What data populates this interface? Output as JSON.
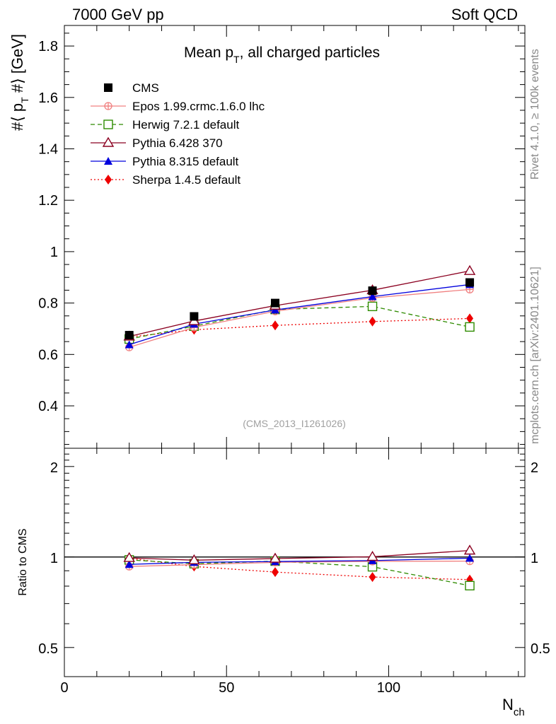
{
  "header": {
    "left": "7000 GeV pp",
    "right": "Soft QCD"
  },
  "side_labels": {
    "rivet": "Rivet 4.1.0, ≥ 100k events",
    "mcplots": "mcplots.cern.ch [arXiv:2401.10621]"
  },
  "colors": {
    "CMS": "#000000",
    "Epos": "#f08080",
    "Herwig": "#2e8b00",
    "Pythia6": "#8b0020",
    "Pythia8": "#0000dd",
    "Sherpa": "#ee0000"
  },
  "chart_data": [
    {
      "type": "line",
      "panel": "main",
      "title_main": "Mean p",
      "title_sub": "T",
      "title_rest": ", all charged particles",
      "ylabel": "#⟨ p_T #⟩ [GeV]",
      "ylabel_pre": "#⟨ p",
      "ylabel_sub": "T",
      "ylabel_post": " #⟩ [GeV]",
      "xlabel": "N_ch",
      "xlim": [
        0,
        142
      ],
      "ylim": [
        0.235,
        1.88
      ],
      "yticks": [
        0.4,
        0.6,
        0.8,
        1.0,
        1.2,
        1.4,
        1.6,
        1.8
      ],
      "ytick_labels": [
        "0.4",
        "0.6",
        "0.8",
        "1",
        "1.2",
        "1.4",
        "1.6",
        "1.8"
      ],
      "watermark": "(CMS_2013_I1261026)",
      "x": [
        20,
        40,
        65,
        95,
        125
      ],
      "series": [
        {
          "key": "CMS",
          "name": "CMS",
          "marker": "square-filled",
          "dash": "none",
          "values": [
            0.675,
            0.748,
            0.8,
            0.848,
            0.88
          ]
        },
        {
          "key": "Epos",
          "name": "Epos 1.99.crmc.1.6.0 lhc",
          "marker": "plus-circle",
          "dash": "solid",
          "values": [
            0.628,
            0.705,
            0.768,
            0.82,
            0.853
          ]
        },
        {
          "key": "Herwig",
          "name": "Herwig 7.2.1 default",
          "marker": "square-open",
          "dash": "dashed",
          "values": [
            0.66,
            0.71,
            0.775,
            0.787,
            0.707
          ]
        },
        {
          "key": "Pythia6",
          "name": "Pythia 6.428 370",
          "marker": "triangle-open",
          "dash": "solid",
          "values": [
            0.67,
            0.73,
            0.79,
            0.85,
            0.925
          ]
        },
        {
          "key": "Pythia8",
          "name": "Pythia 8.315 default",
          "marker": "triangle-filled",
          "dash": "solid",
          "values": [
            0.638,
            0.718,
            0.773,
            0.825,
            0.872
          ]
        },
        {
          "key": "Sherpa",
          "name": "Sherpa 1.4.5 default",
          "marker": "diamond-filled",
          "dash": "dotted",
          "values": [
            0.668,
            0.696,
            0.713,
            0.728,
            0.74
          ]
        }
      ]
    },
    {
      "type": "line",
      "panel": "ratio",
      "ylabel": "Ratio to CMS",
      "xlabel_main": "N",
      "xlabel_sub": "ch",
      "xlim": [
        0,
        142
      ],
      "ylim_log": [
        0.4,
        2.3
      ],
      "yticks": [
        0.5,
        1,
        2
      ],
      "ytick_labels": [
        "0.5",
        "1",
        "2"
      ],
      "xticks": [
        0,
        50,
        100
      ],
      "xtick_labels": [
        "0",
        "50",
        "100"
      ],
      "x": [
        20,
        40,
        65,
        95,
        125
      ],
      "series": [
        {
          "key": "Epos",
          "marker": "plus-circle",
          "dash": "solid",
          "values": [
            0.93,
            0.943,
            0.96,
            0.967,
            0.969
          ]
        },
        {
          "key": "Herwig",
          "marker": "square-open",
          "dash": "dashed",
          "values": [
            0.978,
            0.95,
            0.969,
            0.928,
            0.803
          ]
        },
        {
          "key": "Pythia6",
          "marker": "triangle-open",
          "dash": "solid",
          "values": [
            0.993,
            0.976,
            0.988,
            1.002,
            1.051
          ]
        },
        {
          "key": "Pythia8",
          "marker": "triangle-filled",
          "dash": "solid",
          "values": [
            0.945,
            0.96,
            0.966,
            0.973,
            0.991
          ]
        },
        {
          "key": "Sherpa",
          "marker": "diamond-filled",
          "dash": "dotted",
          "values": [
            0.99,
            0.93,
            0.891,
            0.858,
            0.841
          ]
        }
      ]
    }
  ]
}
